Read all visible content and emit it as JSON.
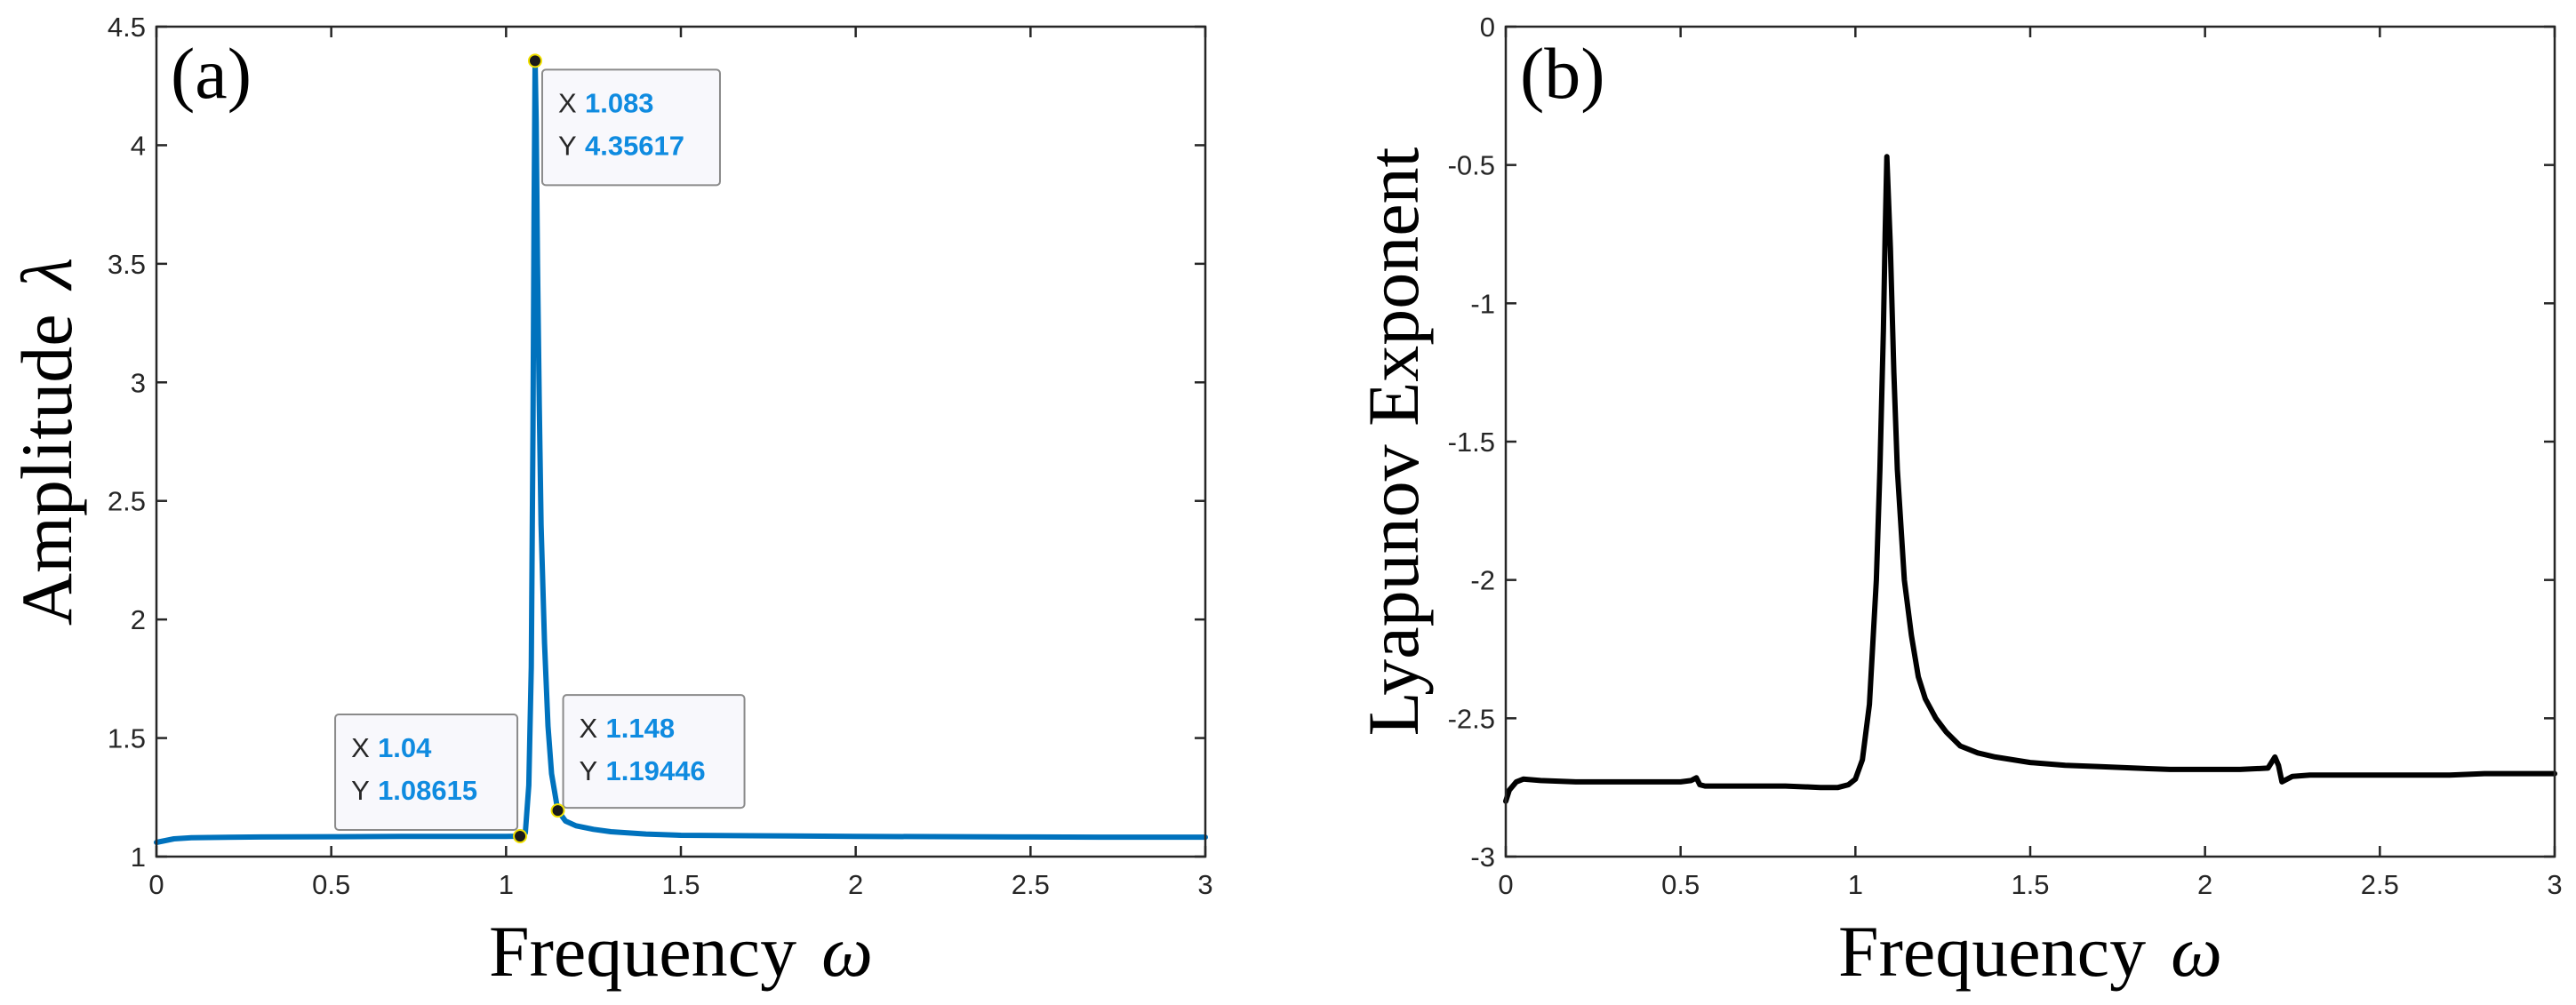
{
  "chart_data": [
    {
      "type": "line",
      "panel_label": "(a)",
      "xlabel": "Frequency",
      "xlabel_symbol": "ω",
      "ylabel": "Amplitude",
      "ylabel_symbol": "λ",
      "xlim": [
        0,
        3
      ],
      "ylim": [
        1,
        4.5
      ],
      "xticks": [
        "0",
        "0.5",
        "1",
        "1.5",
        "2",
        "2.5",
        "3"
      ],
      "yticks": [
        "1",
        "1.5",
        "2",
        "2.5",
        "3",
        "3.5",
        "4",
        "4.5"
      ],
      "line_color": "#0072bd",
      "series": [
        {
          "x": [
            0,
            0.05,
            0.1,
            0.3,
            0.5,
            0.7,
            0.9,
            1.0,
            1.04,
            1.055,
            1.065,
            1.072,
            1.077,
            1.08,
            1.083,
            1.086,
            1.09,
            1.095,
            1.1,
            1.11,
            1.12,
            1.13,
            1.148,
            1.17,
            1.2,
            1.25,
            1.3,
            1.4,
            1.5,
            1.7,
            2.0,
            2.3,
            2.5,
            2.7,
            2.9,
            3.0
          ],
          "y": [
            1.06,
            1.075,
            1.08,
            1.083,
            1.084,
            1.085,
            1.085,
            1.085,
            1.08615,
            1.1,
            1.3,
            1.8,
            2.8,
            3.7,
            4.35617,
            4.1,
            3.5,
            2.9,
            2.4,
            1.9,
            1.55,
            1.35,
            1.19446,
            1.15,
            1.13,
            1.115,
            1.105,
            1.095,
            1.09,
            1.088,
            1.085,
            1.084,
            1.083,
            1.082,
            1.082,
            1.082
          ]
        }
      ],
      "datatips": [
        {
          "x": 1.083,
          "y": 4.35617,
          "x_label": "X",
          "x_text": "1.083",
          "y_label": "Y",
          "y_text": "4.35617"
        },
        {
          "x": 1.04,
          "y": 1.08615,
          "x_label": "X",
          "x_text": "1.04",
          "y_label": "Y",
          "y_text": "1.08615"
        },
        {
          "x": 1.148,
          "y": 1.19446,
          "x_label": "X",
          "x_text": "1.148",
          "y_label": "Y",
          "y_text": "1.19446"
        }
      ]
    },
    {
      "type": "line",
      "panel_label": "(b)",
      "xlabel": "Frequency",
      "xlabel_symbol": "ω",
      "ylabel": "Lyapunov Exponent",
      "xlim": [
        0,
        3
      ],
      "ylim": [
        -3,
        0
      ],
      "xticks": [
        "0",
        "0.5",
        "1",
        "1.5",
        "2",
        "2.5",
        "3"
      ],
      "yticks": [
        "-3",
        "-2.5",
        "-2",
        "-1.5",
        "-1",
        "-0.5",
        "0"
      ],
      "line_color": "#000000",
      "series": [
        {
          "x": [
            0,
            0.01,
            0.03,
            0.05,
            0.1,
            0.2,
            0.3,
            0.4,
            0.5,
            0.53,
            0.545,
            0.555,
            0.57,
            0.6,
            0.7,
            0.8,
            0.9,
            0.95,
            0.98,
            1.0,
            1.02,
            1.04,
            1.06,
            1.07,
            1.08,
            1.085,
            1.09,
            1.1,
            1.11,
            1.12,
            1.14,
            1.16,
            1.18,
            1.2,
            1.23,
            1.26,
            1.3,
            1.35,
            1.4,
            1.5,
            1.6,
            1.7,
            1.8,
            1.9,
            2.0,
            2.1,
            2.18,
            2.2,
            2.21,
            2.22,
            2.25,
            2.3,
            2.4,
            2.5,
            2.6,
            2.7,
            2.8,
            2.9,
            3.0
          ],
          "y": [
            -2.8,
            -2.76,
            -2.73,
            -2.72,
            -2.725,
            -2.73,
            -2.73,
            -2.73,
            -2.73,
            -2.725,
            -2.715,
            -2.74,
            -2.745,
            -2.745,
            -2.745,
            -2.745,
            -2.75,
            -2.75,
            -2.74,
            -2.72,
            -2.65,
            -2.45,
            -2.0,
            -1.6,
            -1.1,
            -0.75,
            -0.47,
            -0.8,
            -1.25,
            -1.6,
            -2.0,
            -2.2,
            -2.35,
            -2.43,
            -2.5,
            -2.55,
            -2.6,
            -2.625,
            -2.64,
            -2.66,
            -2.67,
            -2.675,
            -2.68,
            -2.685,
            -2.685,
            -2.685,
            -2.68,
            -2.64,
            -2.67,
            -2.73,
            -2.71,
            -2.705,
            -2.705,
            -2.705,
            -2.705,
            -2.705,
            -2.7,
            -2.7,
            -2.7
          ]
        }
      ]
    }
  ]
}
